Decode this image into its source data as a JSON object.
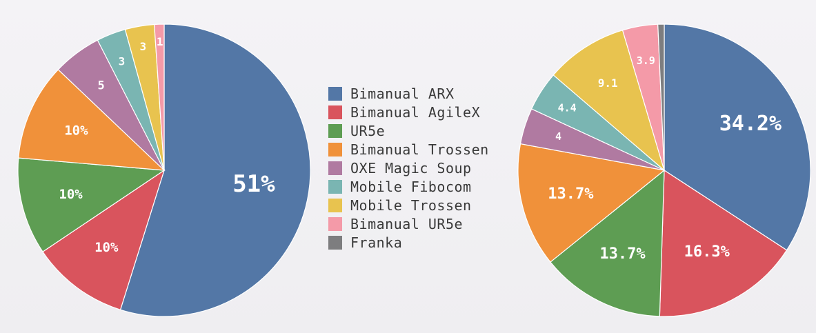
{
  "chart_data": [
    {
      "type": "pie",
      "start_angle_deg": 0,
      "direction": "clockwise",
      "slices": [
        {
          "category": "Bimanual ARX",
          "value": 51,
          "label": "51%",
          "color": "#5377a6"
        },
        {
          "category": "Bimanual AgileX",
          "value": 10,
          "label": "10%",
          "color": "#d9545d"
        },
        {
          "category": "UR5e",
          "value": 10,
          "label": "10%",
          "color": "#5e9d53"
        },
        {
          "category": "Bimanual Trossen",
          "value": 10,
          "label": "10%",
          "color": "#f0913a"
        },
        {
          "category": "OXE Magic Soup",
          "value": 5,
          "label": "5",
          "color": "#b07aa1"
        },
        {
          "category": "Mobile Fibocom",
          "value": 3,
          "label": "3",
          "color": "#7ab5b2"
        },
        {
          "category": "Mobile Trossen",
          "value": 3,
          "label": "3",
          "color": "#e8c34f"
        },
        {
          "category": "Bimanual UR5e",
          "value": 1,
          "label": "1",
          "color": "#f49aa8"
        }
      ]
    },
    {
      "type": "pie",
      "start_angle_deg": 0,
      "direction": "clockwise",
      "slices": [
        {
          "category": "Bimanual ARX",
          "value": 34.2,
          "label": "34.2%",
          "color": "#5377a6"
        },
        {
          "category": "Bimanual AgileX",
          "value": 16.3,
          "label": "16.3%",
          "color": "#d9545d"
        },
        {
          "category": "UR5e",
          "value": 13.7,
          "label": "13.7%",
          "color": "#5e9d53"
        },
        {
          "category": "Bimanual Trossen",
          "value": 13.7,
          "label": "13.7%",
          "color": "#f0913a"
        },
        {
          "category": "OXE Magic Soup",
          "value": 4,
          "label": "4",
          "color": "#b07aa1"
        },
        {
          "category": "Mobile Fibocom",
          "value": 4.4,
          "label": "4.4",
          "color": "#7ab5b2"
        },
        {
          "category": "Mobile Trossen",
          "value": 9.1,
          "label": "9.1",
          "color": "#e8c34f"
        },
        {
          "category": "Bimanual UR5e",
          "value": 3.9,
          "label": "3.9",
          "color": "#f49aa8"
        },
        {
          "category": "Franka",
          "value": 0.7,
          "label": "",
          "color": "#7d7d7f"
        }
      ]
    }
  ],
  "legend": {
    "placement": "center",
    "items": [
      {
        "label": "Bimanual ARX",
        "color": "#5377a6"
      },
      {
        "label": "Bimanual AgileX",
        "color": "#d9545d"
      },
      {
        "label": "UR5e",
        "color": "#5e9d53"
      },
      {
        "label": "Bimanual Trossen",
        "color": "#f0913a"
      },
      {
        "label": "OXE Magic Soup",
        "color": "#b07aa1"
      },
      {
        "label": "Mobile Fibocom",
        "color": "#7ab5b2"
      },
      {
        "label": "Mobile Trossen",
        "color": "#e8c34f"
      },
      {
        "label": "Bimanual UR5e",
        "color": "#f49aa8"
      },
      {
        "label": "Franka",
        "color": "#7d7d7f"
      }
    ]
  }
}
